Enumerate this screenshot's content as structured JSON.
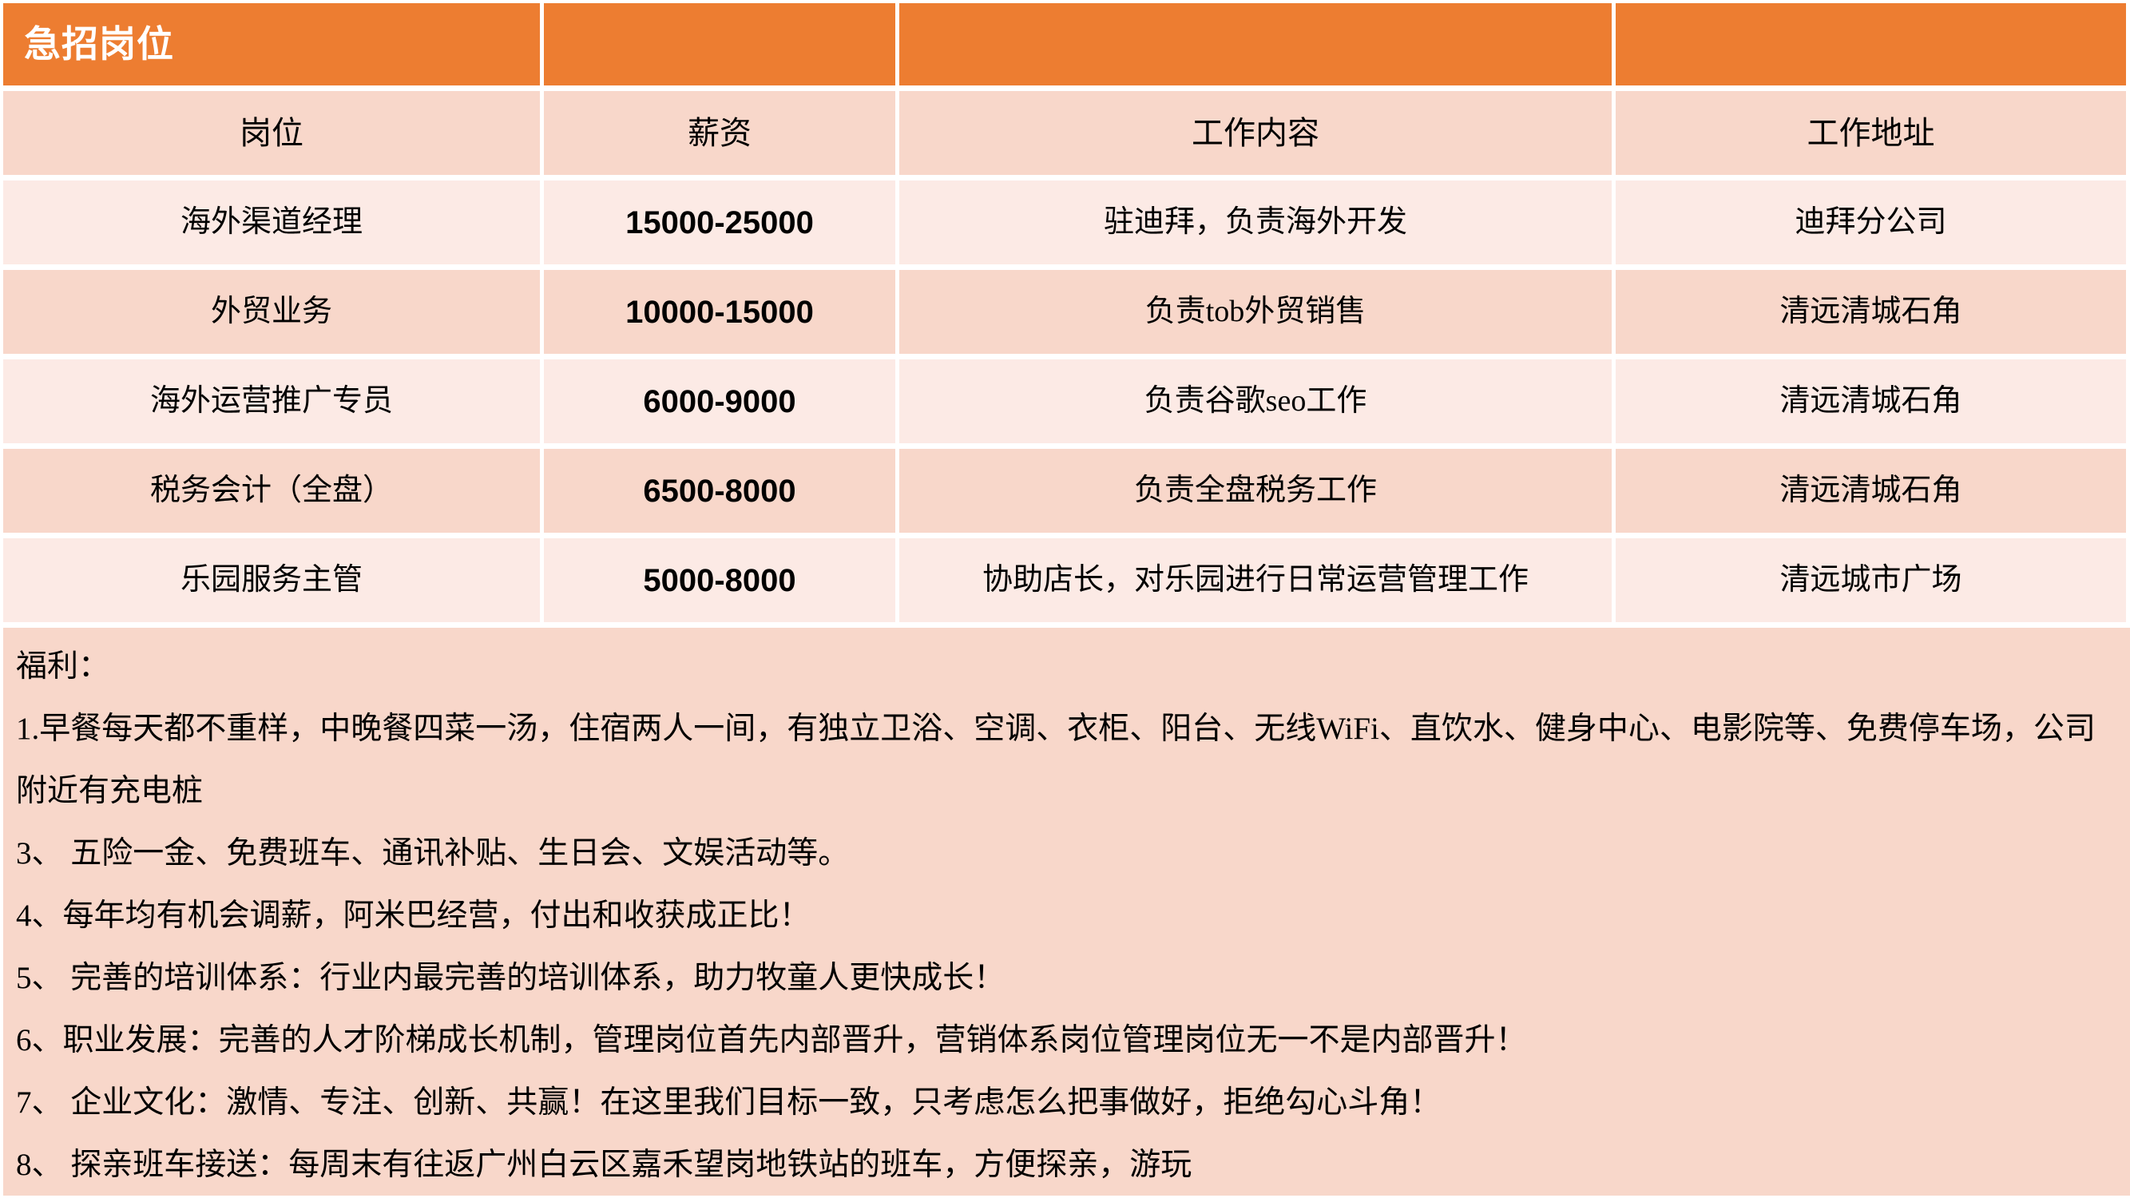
{
  "slide": {
    "title": "急招岗位",
    "table": {
      "headers": [
        "岗位",
        "薪资",
        "工作内容",
        "工作地址"
      ],
      "rows": [
        {
          "position": "海外渠道经理",
          "salary": "15000-25000",
          "content": "驻迪拜，负责海外开发",
          "address": "迪拜分公司"
        },
        {
          "position": "外贸业务",
          "salary": "10000-15000",
          "content": "负责tob外贸销售",
          "address": "清远清城石角"
        },
        {
          "position": "海外运营推广专员",
          "salary": "6000-9000",
          "content": "负责谷歌seo工作",
          "address": "清远清城石角"
        },
        {
          "position": "税务会计（全盘）",
          "salary": "6500-8000",
          "content": "负责全盘税务工作",
          "address": "清远清城石角"
        },
        {
          "position": "乐园服务主管",
          "salary": "5000-8000",
          "content": "协助店长，对乐园进行日常运营管理工作",
          "address": "清远城市广场"
        }
      ]
    },
    "benefits": {
      "lines": [
        "福利：",
        "1.早餐每天都不重样，中晚餐四菜一汤，住宿两人一间，有独立卫浴、空调、衣柜、阳台、无线WiFi、直饮水、健身中心、电影院等、免费停车场，公司附近有充电桩",
        "3、 五险一金、免费班车、通讯补贴、生日会、文娱活动等。",
        "4、每年均有机会调薪，阿米巴经营，付出和收获成正比！",
        "5、 完善的培训体系：行业内最完善的培训体系，助力牧童人更快成长！",
        "6、职业发展：完善的人才阶梯成长机制，管理岗位首先内部晋升，营销体系岗位管理岗位无一不是内部晋升！",
        "7、 企业文化：激情、专注、创新、共赢！在这里我们目标一致，只考虑怎么把事做好，拒绝勾心斗角！",
        "8、 探亲班车接送：每周末有往返广州白云区嘉禾望岗地铁站的班车，方便探亲，游玩"
      ]
    },
    "colors": {
      "accent_orange": "#ED7D31",
      "row_light": "#FCEAE5",
      "row_medium": "#F8D7CA",
      "grid_line": "#FFFFFF",
      "text": "#000000",
      "title_text": "#FFFFFF"
    }
  }
}
